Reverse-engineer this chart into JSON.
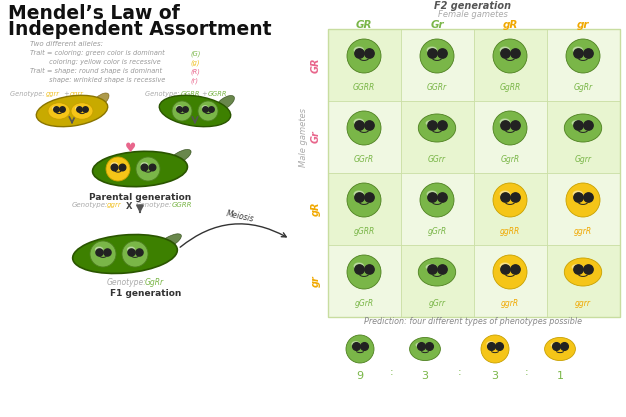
{
  "background": "#ffffff",
  "title_line1": "Mendel’s Law of",
  "title_line2": "Independent Assortment",
  "alleles_header": "Two different alleles:",
  "allele_lines": [
    "Trait = coloring: green color is dominant",
    "         coloring: yellow color is recessive",
    "Trait = shape: round shape is dominant",
    "         shape: wrinkled shape is recessive"
  ],
  "allele_tags": [
    "(G)",
    "(g)",
    "(R)",
    "(r)"
  ],
  "allele_tag_colors": [
    "#7ab648",
    "#f0c020",
    "#e8668c",
    "#e8668c"
  ],
  "f2_title": "F2 generation",
  "female_label": "Female gametes",
  "male_label": "Male gametes",
  "col_headers": [
    "GR",
    "Gr",
    "gR",
    "gr"
  ],
  "col_header_colors": [
    "#7ab648",
    "#7ab648",
    "#f0a800",
    "#f0a800"
  ],
  "row_headers": [
    "GR",
    "Gr",
    "gR",
    "gr"
  ],
  "row_header_colors": [
    "#e8668c",
    "#e8668c",
    "#f0a800",
    "#f0a800"
  ],
  "cell_genotype_labels": [
    [
      "GGRR",
      "GGRr",
      "GgRR",
      "GgRr"
    ],
    [
      "GGrR",
      "GGrr",
      "GgrR",
      "Ggrr"
    ],
    [
      "gGRR",
      "gGrR",
      "ggRR",
      "ggrR"
    ],
    [
      "gGrR",
      "gGrr",
      "ggrR",
      "ggrr"
    ]
  ],
  "cell_colors": [
    [
      "green",
      "green",
      "green",
      "green"
    ],
    [
      "green",
      "green",
      "green",
      "green"
    ],
    [
      "green",
      "green",
      "yellow",
      "yellow"
    ],
    [
      "green",
      "green",
      "yellow",
      "yellow"
    ]
  ],
  "cell_shapes": [
    [
      "round",
      "round",
      "round",
      "round"
    ],
    [
      "round",
      "wrinkled",
      "round",
      "wrinkled"
    ],
    [
      "round",
      "round",
      "round",
      "round"
    ],
    [
      "round",
      "wrinkled",
      "round",
      "wrinkled"
    ]
  ],
  "prediction_text": "Prediction: four different types of phenotypes possible",
  "ratio_vals": [
    "9",
    "3",
    "3",
    "1"
  ],
  "ratio_colors": [
    "green",
    "green",
    "yellow",
    "yellow"
  ],
  "ratio_shapes": [
    "round",
    "wrinkled",
    "round",
    "wrinkled"
  ],
  "green_face": "#7ab648",
  "green_edge": "#4e8020",
  "yellow_face": "#f5c518",
  "yellow_edge": "#c8a000",
  "grid_bg_a": "#e8f5d0",
  "grid_bg_b": "#f0f8e2",
  "grid_border": "#c8dda0"
}
